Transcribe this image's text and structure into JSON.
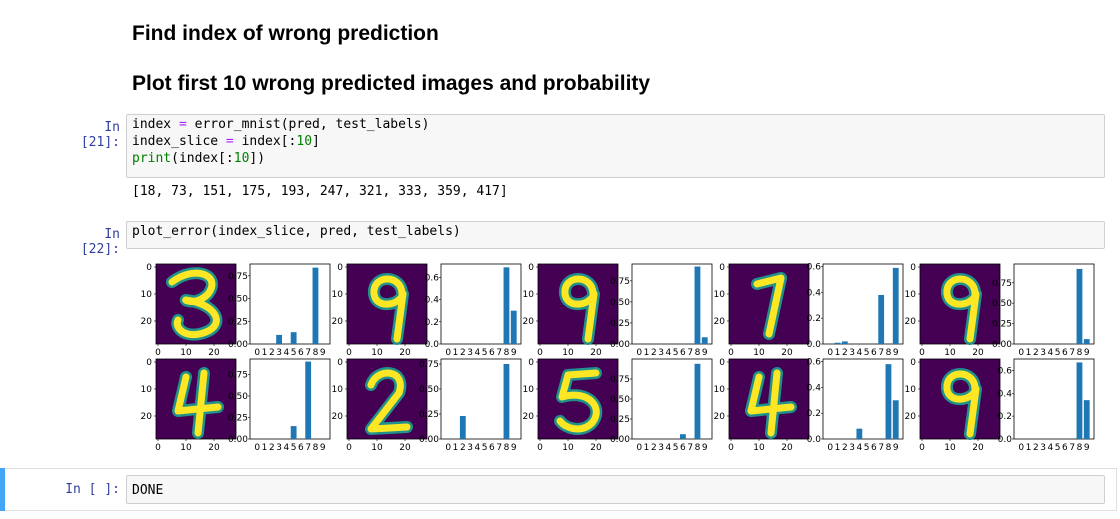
{
  "notebook": {
    "heading1": "Find index of wrong prediction",
    "heading2": "Plot first 10 wrong predicted images and probability",
    "cell21": {
      "prompt": "In [21]:",
      "output": "[18, 73, 151, 175, 193, 247, 321, 333, 359, 417]"
    },
    "cell22": {
      "prompt": "In [22]:",
      "code": "plot_error(index_slice, pred, test_labels)"
    },
    "cell_empty": {
      "prompt": "In [ ]:",
      "code": "DONE"
    }
  },
  "code21": {
    "l1_a": "index ",
    "l1_op": "=",
    "l1_b": " error_mnist(pred, test_labels)",
    "l2_a": "index_slice ",
    "l2_op": "=",
    "l2_b": " index[:",
    "l2_n": "10",
    "l2_c": "]",
    "l3_kw": "print",
    "l3_a": "(index[:",
    "l3_n": "10",
    "l3_c": "])"
  },
  "chart_data": {
    "type": "bar",
    "image_axis_ticks": {
      "x": [
        "0",
        "10",
        "20"
      ],
      "y": [
        "0",
        "10",
        "20"
      ]
    },
    "categories": [
      "0",
      "1",
      "2",
      "3",
      "4",
      "5",
      "6",
      "7",
      "8",
      "9"
    ],
    "colors": {
      "bar": "#1f77b4",
      "image_bg": "#440154",
      "image_fg": "#fde725",
      "mid": "#21918c"
    },
    "panels": [
      {
        "digit_shape": "3-like",
        "yticks": [
          "0.75",
          "0.50",
          "0.25",
          "0.00"
        ],
        "ylim": [
          0,
          0.88
        ],
        "values": [
          0,
          0,
          0,
          0.1,
          0,
          0.13,
          0,
          0,
          0.84,
          0
        ]
      },
      {
        "digit_shape": "9",
        "yticks": [
          "0.6",
          "0.4",
          "0.2",
          "0.0"
        ],
        "ylim": [
          0,
          0.72
        ],
        "values": [
          0,
          0,
          0,
          0,
          0,
          0,
          0,
          0,
          0.69,
          0.3
        ]
      },
      {
        "digit_shape": "9",
        "yticks": [
          "0.75",
          "0.50",
          "0.25",
          "0.00"
        ],
        "ylim": [
          0,
          0.95
        ],
        "values": [
          0,
          0,
          0,
          0,
          0,
          0,
          0,
          0,
          0.92,
          0.08
        ]
      },
      {
        "digit_shape": "7",
        "yticks": [
          "0.6",
          "0.4",
          "0.2",
          "0.0"
        ],
        "ylim": [
          0,
          0.62
        ],
        "values": [
          0,
          0.01,
          0.02,
          0,
          0,
          0,
          0,
          0.38,
          0,
          0.59
        ]
      },
      {
        "digit_shape": "9",
        "yticks": [
          "0.75",
          "0.50",
          "0.25",
          "0.00"
        ],
        "ylim": [
          0,
          0.98
        ],
        "values": [
          0,
          0,
          0,
          0,
          0,
          0,
          0,
          0,
          0.92,
          0.06
        ]
      },
      {
        "digit_shape": "4",
        "yticks": [
          "0.75",
          "0.50",
          "0.25",
          "0.00"
        ],
        "ylim": [
          0,
          0.93
        ],
        "values": [
          0,
          0,
          0,
          0,
          0,
          0.15,
          0,
          0.9,
          0,
          0
        ]
      },
      {
        "digit_shape": "2",
        "yticks": [
          "0.75",
          "0.50",
          "0.25",
          "0.00"
        ],
        "ylim": [
          0,
          0.8
        ],
        "values": [
          0,
          0,
          0.23,
          0,
          0,
          0,
          0,
          0,
          0.75,
          0
        ]
      },
      {
        "digit_shape": "5",
        "yticks": [
          "0.75",
          "0.50",
          "0.25",
          "0.00"
        ],
        "ylim": [
          0,
          1.0
        ],
        "values": [
          0,
          0,
          0,
          0,
          0,
          0,
          0.06,
          0,
          0.94,
          0
        ]
      },
      {
        "digit_shape": "4",
        "yticks": [
          "0.6",
          "0.4",
          "0.2",
          "0.0"
        ],
        "ylim": [
          0,
          0.62
        ],
        "values": [
          0,
          0,
          0,
          0,
          0.08,
          0,
          0,
          0,
          0.58,
          0.3
        ]
      },
      {
        "digit_shape": "9",
        "yticks": [
          "0.6",
          "0.4",
          "0.2",
          "0.0"
        ],
        "ylim": [
          0,
          0.7
        ],
        "values": [
          0,
          0,
          0,
          0,
          0,
          0,
          0,
          0,
          0.67,
          0.34
        ]
      }
    ]
  }
}
